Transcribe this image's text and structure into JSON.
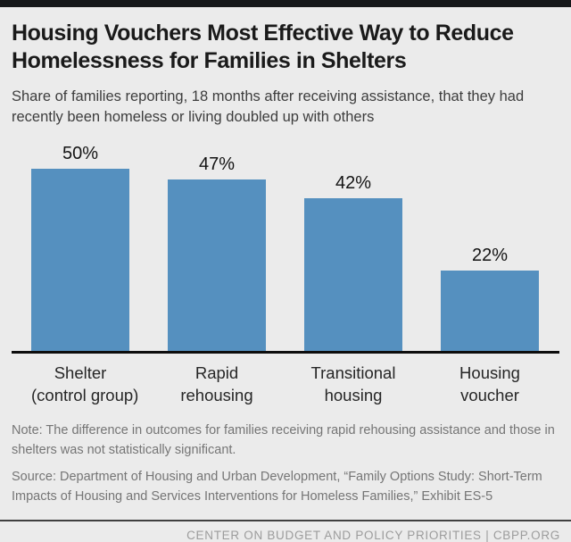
{
  "chart_data": {
    "type": "bar",
    "title": "Housing Vouchers Most Effective Way to Reduce Homelessness for Families in Shelters",
    "subtitle": "Share of families reporting, 18 months after receiving assistance, that they had recently been homeless or living doubled up with others",
    "categories": [
      "Shelter (control group)",
      "Rapid rehousing",
      "Transitional housing",
      "Housing voucher"
    ],
    "category_lines": [
      [
        "Shelter",
        "(control group)"
      ],
      [
        "Rapid",
        "rehousing"
      ],
      [
        "Transitional",
        "housing"
      ],
      [
        "Housing",
        "voucher"
      ]
    ],
    "values": [
      50,
      47,
      42,
      22
    ],
    "value_labels": [
      "50%",
      "47%",
      "42%",
      "22%"
    ],
    "xlabel": "",
    "ylabel": "",
    "ylim": [
      0,
      55
    ],
    "grid": false,
    "legend": false,
    "bar_color": "#5590bf"
  },
  "notes": {
    "note": "Note: The difference in outcomes for families receiving rapid rehousing assistance and those in shelters was not statistically significant.",
    "source": "Source: Department of Housing and Urban Development, “Family Options Study: Short-Term Impacts of Housing and Services Interventions for Homeless Families,” Exhibit ES-5"
  },
  "footer": {
    "text": "CENTER ON BUDGET AND POLICY PRIORITIES | CBPP.ORG"
  },
  "colors": {
    "background": "#ebebeb",
    "topbar": "#16181a",
    "bar": "#5590bf",
    "axis_line": "#0d0d0d",
    "title_text": "#1a1a1a",
    "subtitle_text": "#3d3d3d",
    "note_text": "#757575",
    "footer_text": "#9c9c9c",
    "footer_divider": "#3f3f3f"
  }
}
